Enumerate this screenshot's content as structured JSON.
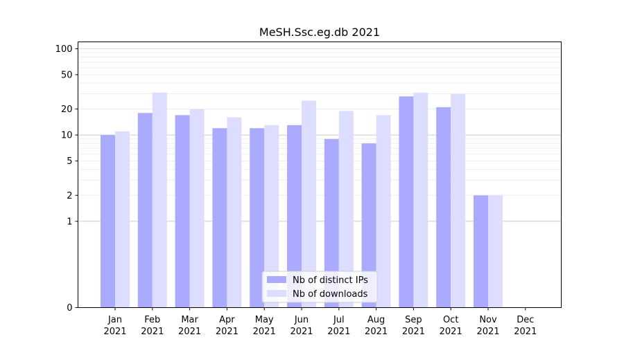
{
  "chart_data": {
    "type": "bar",
    "title": "MeSH.Ssc.eg.db 2021",
    "xlabel": "",
    "ylabel": "",
    "y_scale": "symlog",
    "ylim": [
      0,
      120
    ],
    "y_ticks": [
      0,
      1,
      2,
      5,
      10,
      20,
      50,
      100
    ],
    "y_tick_labels": [
      "0",
      "1",
      "2",
      "5",
      "10",
      "20",
      "50",
      "100"
    ],
    "categories": [
      [
        "Jan",
        "2021"
      ],
      [
        "Feb",
        "2021"
      ],
      [
        "Mar",
        "2021"
      ],
      [
        "Apr",
        "2021"
      ],
      [
        "May",
        "2021"
      ],
      [
        "Jun",
        "2021"
      ],
      [
        "Jul",
        "2021"
      ],
      [
        "Aug",
        "2021"
      ],
      [
        "Sep",
        "2021"
      ],
      [
        "Oct",
        "2021"
      ],
      [
        "Nov",
        "2021"
      ],
      [
        "Dec",
        "2021"
      ]
    ],
    "series": [
      {
        "name": "Nb of distinct IPs",
        "color": "#aaaaff",
        "values": [
          10,
          18,
          17,
          12,
          12,
          13,
          9,
          8,
          28,
          21,
          2,
          0
        ]
      },
      {
        "name": "Nb of downloads",
        "color": "#ddddff",
        "values": [
          11,
          31,
          20,
          16,
          13,
          25,
          19,
          17,
          31,
          30,
          2,
          0
        ]
      }
    ],
    "legend": {
      "position": "lower-center"
    },
    "grid": true
  }
}
